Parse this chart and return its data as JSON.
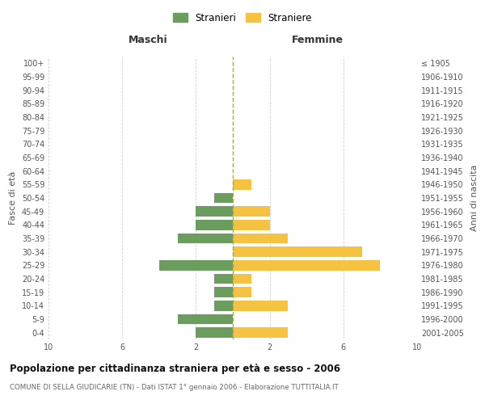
{
  "age_groups": [
    "0-4",
    "5-9",
    "10-14",
    "15-19",
    "20-24",
    "25-29",
    "30-34",
    "35-39",
    "40-44",
    "45-49",
    "50-54",
    "55-59",
    "60-64",
    "65-69",
    "70-74",
    "75-79",
    "80-84",
    "85-89",
    "90-94",
    "95-99",
    "100+"
  ],
  "birth_years": [
    "2001-2005",
    "1996-2000",
    "1991-1995",
    "1986-1990",
    "1981-1985",
    "1976-1980",
    "1971-1975",
    "1966-1970",
    "1961-1965",
    "1956-1960",
    "1951-1955",
    "1946-1950",
    "1941-1945",
    "1936-1940",
    "1931-1935",
    "1926-1930",
    "1921-1925",
    "1916-1920",
    "1911-1915",
    "1906-1910",
    "≤ 1905"
  ],
  "maschi": [
    2,
    3,
    1,
    1,
    1,
    4,
    0,
    3,
    2,
    2,
    1,
    0,
    0,
    0,
    0,
    0,
    0,
    0,
    0,
    0,
    0
  ],
  "femmine": [
    3,
    0,
    3,
    1,
    1,
    8,
    7,
    3,
    2,
    2,
    0,
    1,
    0,
    0,
    0,
    0,
    0,
    0,
    0,
    0,
    0
  ],
  "color_maschi": "#6b9e5e",
  "color_femmine": "#f5c242",
  "title": "Popolazione per cittadinanza straniera per età e sesso - 2006",
  "subtitle": "COMUNE DI SELLA GIUDICARIE (TN) - Dati ISTAT 1° gennaio 2006 - Elaborazione TUTTITALIA.IT",
  "header_left": "Maschi",
  "header_right": "Femmine",
  "ylabel_left": "Fasce di età",
  "ylabel_right": "Anni di nascita",
  "xlim": 10,
  "legend_stranieri": "Stranieri",
  "legend_straniere": "Straniere",
  "background_color": "#ffffff",
  "grid_color": "#d0d0d0",
  "dashed_line_color": "#aaa855"
}
